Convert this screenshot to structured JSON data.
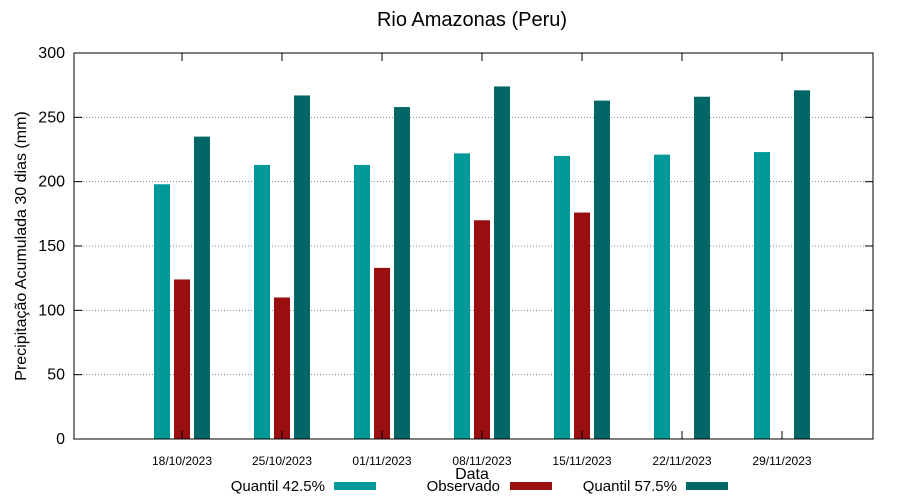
{
  "chart_data": {
    "type": "bar",
    "title": "Rio Amazonas (Peru)",
    "xlabel": "Data",
    "ylabel": "Precipitação Acumulada 30 dias (mm)",
    "ylim": [
      0,
      300
    ],
    "yticks": [
      0,
      50,
      100,
      150,
      200,
      250,
      300
    ],
    "grid": true,
    "legend_position": "bottom",
    "categories": [
      "18/10/2023",
      "25/10/2023",
      "01/11/2023",
      "08/11/2023",
      "15/11/2023",
      "22/11/2023",
      "29/11/2023"
    ],
    "series": [
      {
        "name": "Quantil 42.5%",
        "color": "#009999",
        "values": [
          198,
          213,
          213,
          222,
          220,
          221,
          223
        ]
      },
      {
        "name": "Observado",
        "color": "#990f0f",
        "values": [
          124,
          110,
          133,
          170,
          176,
          null,
          null
        ]
      },
      {
        "name": "Quantil 57.5%",
        "color": "#006666",
        "values": [
          235,
          267,
          258,
          274,
          263,
          266,
          271
        ]
      }
    ]
  }
}
